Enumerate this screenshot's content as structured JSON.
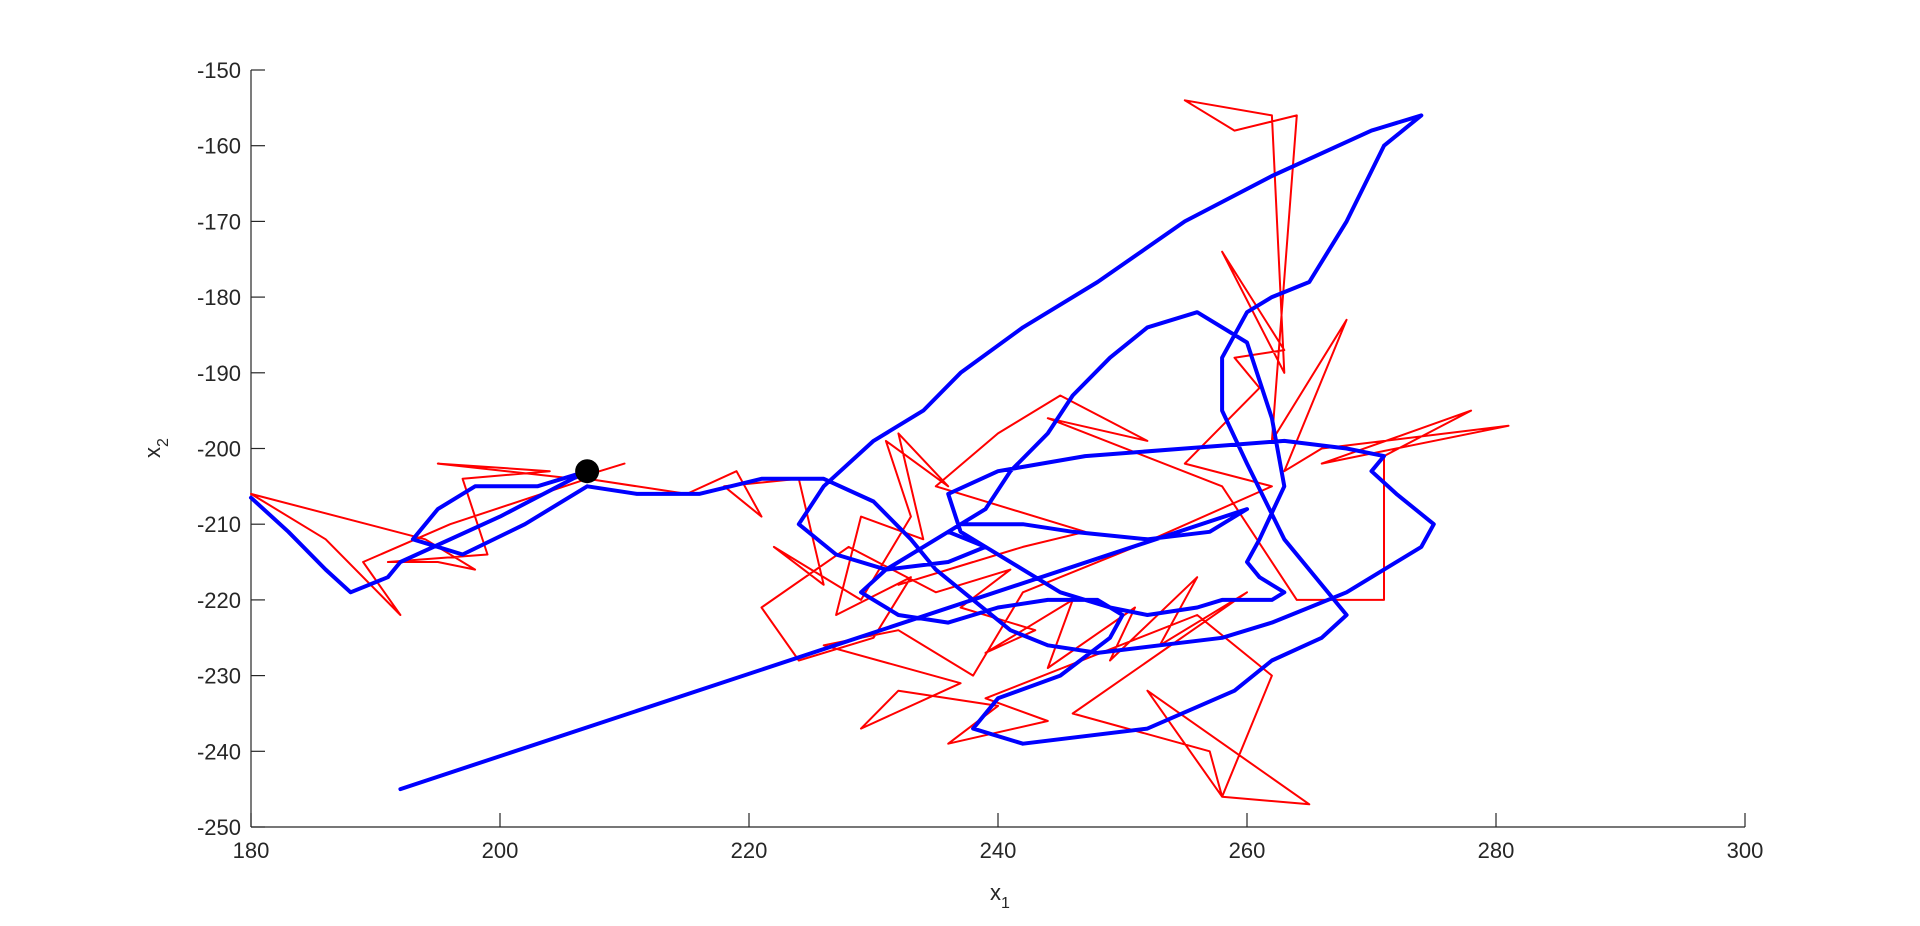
{
  "chart_data": {
    "type": "line",
    "xlabel": {
      "text": "x",
      "subscript": "1"
    },
    "ylabel": {
      "text": "x",
      "subscript": "2"
    },
    "xlim": [
      180,
      300
    ],
    "xticks": [
      180,
      200,
      220,
      240,
      260,
      280,
      300
    ],
    "ylim": [
      -250,
      -150
    ],
    "yticks": [
      -250,
      -240,
      -230,
      -220,
      -210,
      -200,
      -190,
      -180,
      -170,
      -160,
      -150
    ],
    "series": [
      {
        "color": "#ff0000",
        "width": 2,
        "x": [
          210,
          206,
          195,
          204,
          197,
          199,
          191,
          195,
          198,
          194,
          180,
          186,
          192,
          189,
          196,
          207,
          215,
          219,
          221,
          218,
          224,
          226,
          222,
          229,
          233,
          231,
          236,
          232,
          234,
          229,
          227,
          233,
          230,
          224,
          221,
          228,
          235,
          241,
          237,
          243,
          239,
          246,
          244,
          251,
          249,
          256,
          253,
          260,
          246,
          257,
          258,
          252,
          265,
          258,
          262,
          256,
          239,
          244,
          236,
          240,
          232,
          229,
          237,
          226,
          232,
          238,
          242,
          251,
          262,
          255,
          261,
          259,
          263,
          258,
          263,
          262,
          255,
          259,
          264,
          262,
          268,
          263,
          266,
          281,
          266,
          278,
          271,
          271,
          264,
          258,
          244,
          252,
          245,
          240,
          235,
          247,
          242,
          232,
          238
        ],
        "y": [
          -202,
          -204,
          -202,
          -203,
          -204,
          -214,
          -215,
          -215,
          -216,
          -212,
          -206,
          -212,
          -222,
          -215,
          -210,
          -204,
          -206,
          -203,
          -209,
          -205,
          -204,
          -218,
          -213,
          -220,
          -209,
          -199,
          -205,
          -198,
          -212,
          -209,
          -222,
          -217,
          -225,
          -228,
          -221,
          -213,
          -219,
          -216,
          -221,
          -224,
          -227,
          -220,
          -229,
          -221,
          -228,
          -217,
          -226,
          -219,
          -235,
          -240,
          -246,
          -232,
          -247,
          -246,
          -230,
          -222,
          -233,
          -236,
          -239,
          -234,
          -232,
          -237,
          -231,
          -226,
          -224,
          -230,
          -219,
          -213,
          -205,
          -202,
          -192,
          -188,
          -187,
          -174,
          -190,
          -156,
          -154,
          -158,
          -156,
          -199,
          -183,
          -203,
          -200,
          -197,
          -202,
          -195,
          -201,
          -220,
          -220,
          -205,
          -196,
          -199,
          -193,
          -198,
          -205,
          -211,
          -213,
          -218,
          -215
        ]
      },
      {
        "color": "#0000ff",
        "width": 4,
        "x": [
          180,
          183,
          186,
          188,
          191,
          192,
          200,
          207,
          203,
          198,
          195,
          193,
          197,
          202,
          207,
          211,
          216,
          221,
          226,
          230,
          233,
          235,
          238,
          241,
          244,
          248,
          253,
          258,
          262,
          265,
          268,
          271,
          274,
          275,
          272,
          270,
          271,
          268,
          263,
          255,
          247,
          240,
          236,
          237,
          241,
          245,
          249,
          252,
          256,
          258,
          260,
          262,
          263,
          262,
          261,
          260,
          261,
          263,
          262,
          260,
          256,
          252,
          249,
          246,
          244,
          241,
          239,
          236,
          233,
          231,
          229,
          232,
          236,
          240,
          244,
          248,
          250,
          249,
          245,
          240,
          238,
          242,
          252,
          259,
          262,
          266,
          268,
          263,
          260,
          258,
          258,
          260,
          262,
          265,
          268,
          271,
          274,
          270,
          262,
          255,
          248,
          242,
          237,
          234,
          230,
          226,
          224,
          227,
          231,
          236,
          239,
          236,
          237,
          242,
          246,
          252,
          257,
          260,
          192
        ],
        "y": [
          -206.5,
          -211,
          -216,
          -219,
          -217,
          -215,
          -209,
          -203,
          -205,
          -205,
          -208,
          -212,
          -214,
          -210,
          -205,
          -206,
          -206,
          -204,
          -204,
          -207,
          -212,
          -216,
          -220,
          -224,
          -226,
          -227,
          -226,
          -225,
          -223,
          -221,
          -219,
          -216,
          -213,
          -210,
          -206,
          -203,
          -201,
          -200,
          -199,
          -200,
          -201,
          -203,
          -206,
          -211,
          -215,
          -219,
          -221,
          -222,
          -221,
          -220,
          -220,
          -220,
          -219,
          -218,
          -217,
          -215,
          -212,
          -205,
          -196,
          -186,
          -182,
          -184,
          -188,
          -193,
          -198,
          -203,
          -208,
          -211,
          -214,
          -216,
          -219,
          -222,
          -223,
          -221,
          -220,
          -220,
          -222,
          -225,
          -230,
          -233,
          -237,
          -239,
          -237,
          -232,
          -228,
          -225,
          -222,
          -212,
          -202,
          -195,
          -188,
          -182,
          -180,
          -178,
          -170,
          -160,
          -156,
          -158,
          -164,
          -170,
          -178,
          -184,
          -190,
          -195,
          -199,
          -205,
          -210,
          -214,
          -216,
          -215,
          -213,
          -211,
          -210,
          -210,
          -211,
          -212,
          -211,
          -208,
          -245
        ]
      }
    ],
    "markers": [
      {
        "x": 207,
        "y": -203,
        "color": "#000000"
      }
    ]
  }
}
